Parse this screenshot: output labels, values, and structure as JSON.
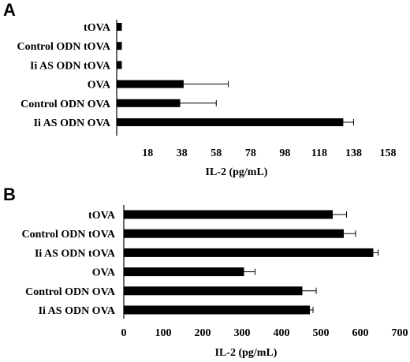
{
  "chart_data": [
    {
      "type": "bar",
      "orientation": "horizontal",
      "panel_label": "A",
      "categories": [
        "tOVA",
        "Control ODN tOVA",
        "Ii AS ODN tOVA",
        "OVA",
        "Control ODN OVA",
        "Ii AS ODN OVA"
      ],
      "values": [
        3,
        3,
        3,
        39,
        37,
        132
      ],
      "errors": [
        0,
        0,
        0,
        26,
        21,
        6
      ],
      "xlabel": "IL-2 (pg/mL)",
      "ylabel": "",
      "xlim": [
        0,
        158
      ],
      "xticks": [
        18,
        38,
        58,
        78,
        98,
        118,
        138,
        158
      ],
      "grid": false
    },
    {
      "type": "bar",
      "orientation": "horizontal",
      "panel_label": "B",
      "categories": [
        "tOVA",
        "Control ODN tOVA",
        "Ii AS ODN tOVA",
        "OVA",
        "Control ODN OVA",
        "Ii AS ODN OVA"
      ],
      "values": [
        530,
        558,
        633,
        305,
        453,
        472
      ],
      "errors": [
        35,
        30,
        12,
        28,
        35,
        8
      ],
      "xlabel": "IL-2 (pg/mL)",
      "ylabel": "",
      "xlim": [
        0,
        700
      ],
      "xticks": [
        0,
        100,
        200,
        300,
        400,
        500,
        600,
        700
      ],
      "grid": false
    }
  ]
}
